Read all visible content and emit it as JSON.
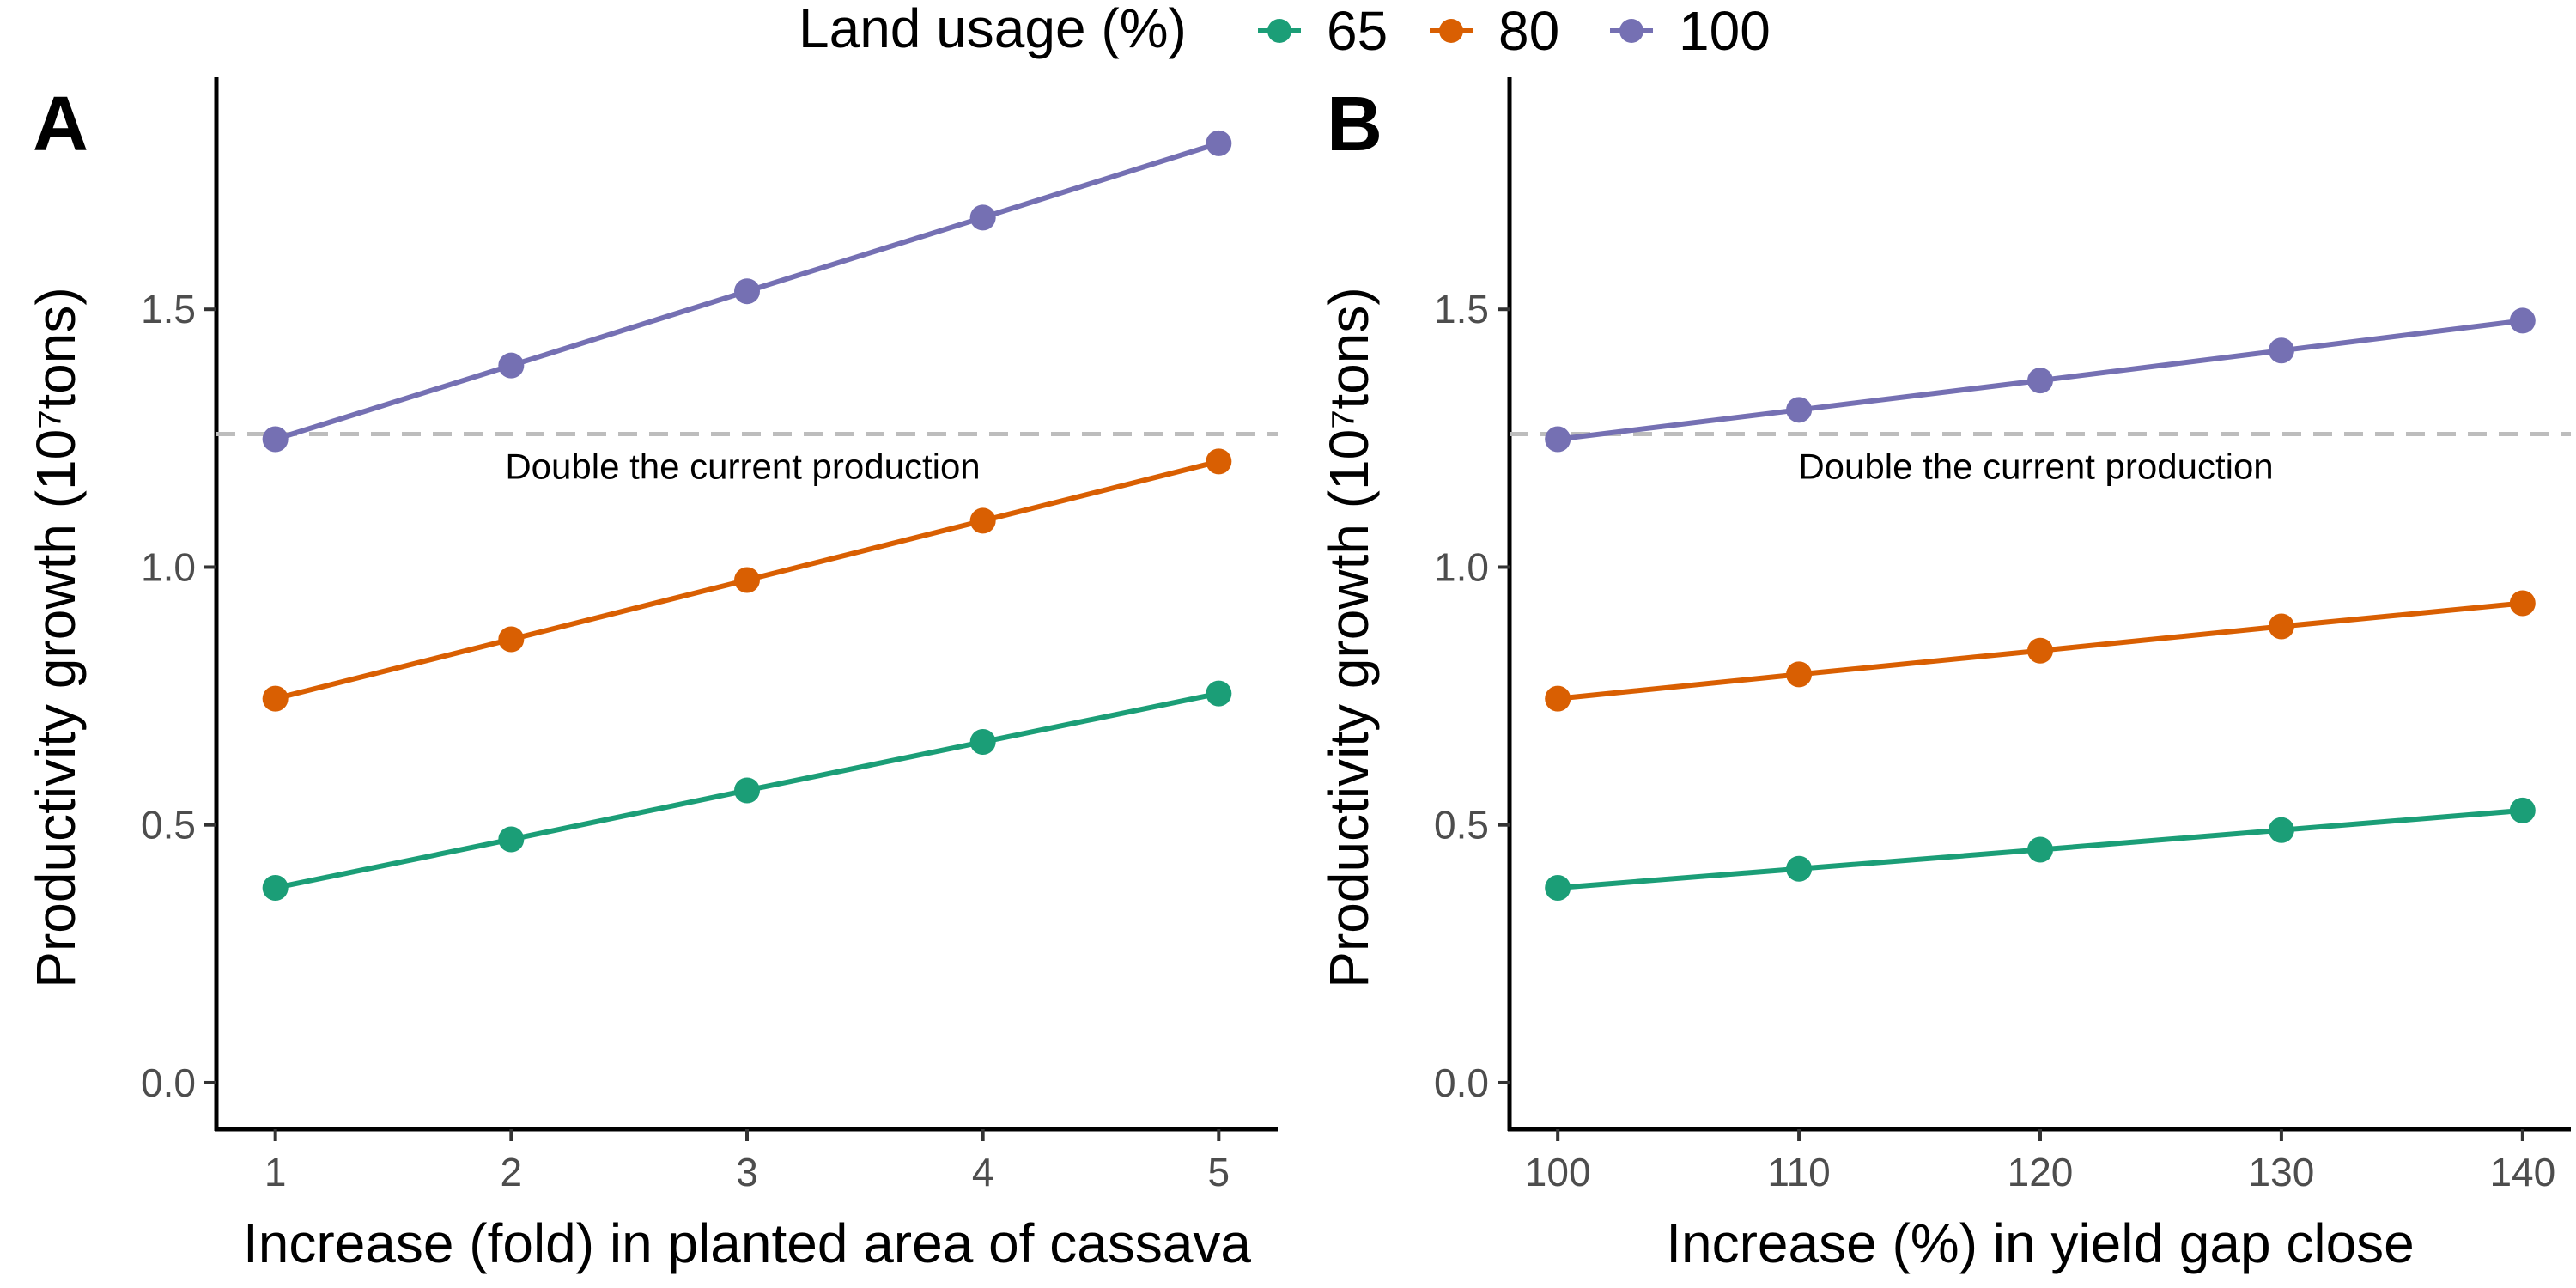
{
  "legend": {
    "title": "Land usage (%)",
    "entries": [
      {
        "label": "65",
        "color": "#1b9e77"
      },
      {
        "label": "80",
        "color": "#d95f02"
      },
      {
        "label": "100",
        "color": "#7570b3"
      }
    ]
  },
  "chart_data": [
    {
      "type": "line",
      "panel": "A",
      "xlabel": "Increase (fold) in planted area of cassava",
      "ylabel": "Productivity growth (10⁷tons)",
      "x": [
        1,
        2,
        3,
        4,
        5
      ],
      "xticks": [
        "1",
        "2",
        "3",
        "4",
        "5"
      ],
      "xlim": [
        0.75,
        5.25
      ],
      "yticks": [
        "0.0",
        "0.5",
        "1.0",
        "1.5"
      ],
      "ylim": [
        -0.09,
        1.95
      ],
      "series": [
        {
          "name": "65",
          "color": "#1b9e77",
          "values": [
            0.378,
            0.472,
            0.567,
            0.661,
            0.755
          ]
        },
        {
          "name": "80",
          "color": "#d95f02",
          "values": [
            0.745,
            0.86,
            0.975,
            1.09,
            1.205
          ]
        },
        {
          "name": "100",
          "color": "#7570b3",
          "values": [
            1.248,
            1.391,
            1.535,
            1.678,
            1.822
          ]
        }
      ],
      "reference_line": {
        "y": 1.258,
        "label": "Double the current production"
      },
      "grid": false,
      "legend_position": "top"
    },
    {
      "type": "line",
      "panel": "B",
      "xlabel": "Increase (%) in yield gap close",
      "ylabel": "Productivity growth (10⁷tons)",
      "x": [
        100,
        110,
        120,
        130,
        140
      ],
      "xticks": [
        "100",
        "110",
        "120",
        "130",
        "140"
      ],
      "xlim": [
        98,
        142
      ],
      "yticks": [
        "0.0",
        "0.5",
        "1.0",
        "1.5"
      ],
      "ylim": [
        -0.09,
        1.95
      ],
      "series": [
        {
          "name": "65",
          "color": "#1b9e77",
          "values": [
            0.378,
            0.415,
            0.452,
            0.49,
            0.528
          ]
        },
        {
          "name": "80",
          "color": "#d95f02",
          "values": [
            0.745,
            0.792,
            0.838,
            0.885,
            0.93
          ]
        },
        {
          "name": "100",
          "color": "#7570b3",
          "values": [
            1.248,
            1.305,
            1.362,
            1.42,
            1.478
          ]
        }
      ],
      "reference_line": {
        "y": 1.258,
        "label": "Double the current production"
      },
      "grid": false,
      "legend_position": "top"
    }
  ]
}
